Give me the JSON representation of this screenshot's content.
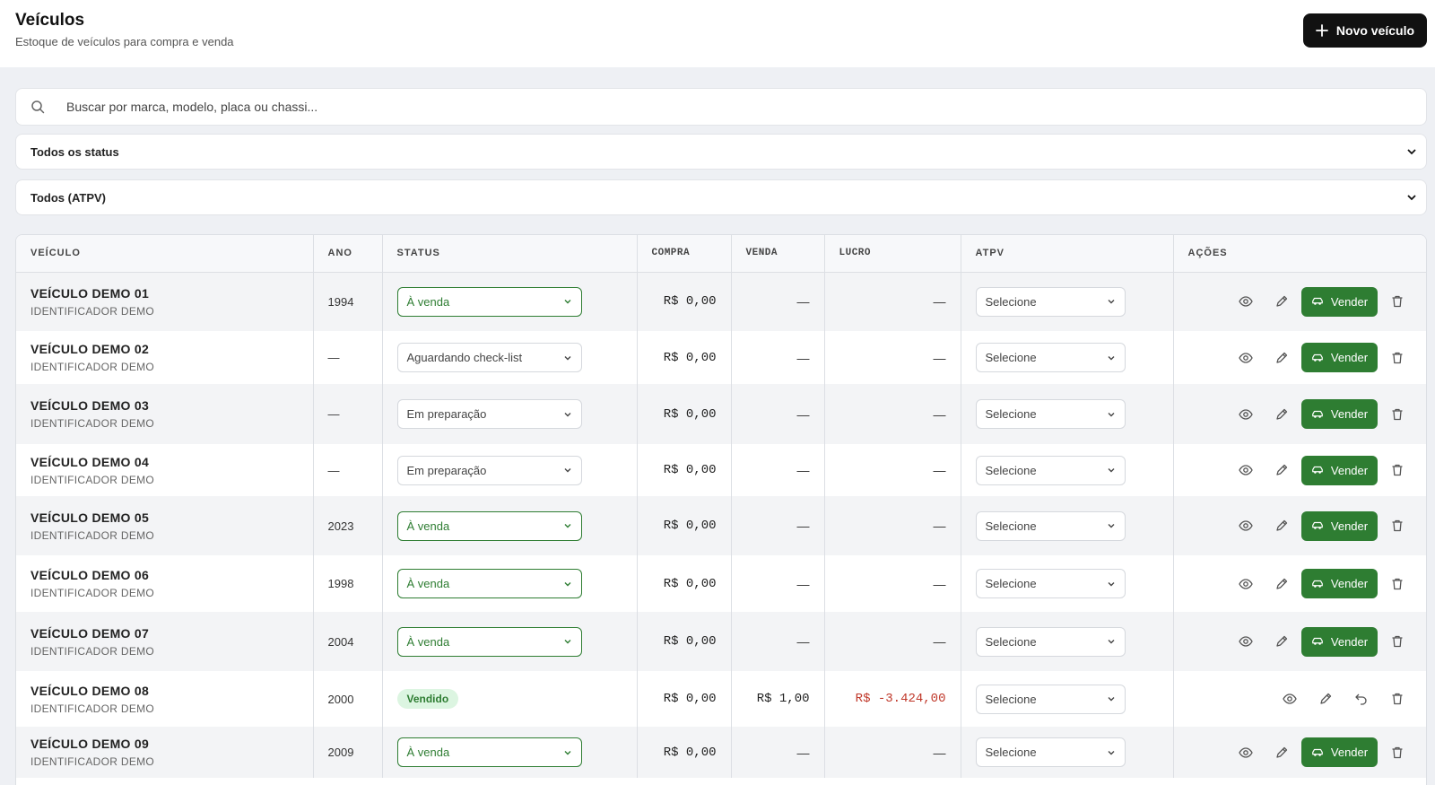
{
  "header": {
    "title": "Veículos",
    "subtitle": "Estoque de veículos para compra e venda",
    "new_button_label": "Novo veículo"
  },
  "search": {
    "placeholder": "Buscar por marca, modelo, placa ou chassi..."
  },
  "filters": {
    "status": "Todos os status",
    "atpv": "Todos (ATPV)"
  },
  "table": {
    "columns": [
      "VEÍCULO",
      "ANO",
      "STATUS",
      "COMPRA",
      "VENDA",
      "LUCRO",
      "ATPV",
      "AÇÕES"
    ],
    "sell_label": "Vender",
    "rows": [
      {
        "name": "VEÍCULO DEMO 01",
        "id": "IDENTIFICADOR DEMO",
        "year": "1994",
        "status": "À venda",
        "status_kind": "sale",
        "compra": "R$ 0,00",
        "venda": "—",
        "lucro": "—",
        "atpv": "Selecione",
        "sold": false
      },
      {
        "name": "VEÍCULO DEMO 02",
        "id": "IDENTIFICADOR DEMO",
        "year": "—",
        "status": "Aguardando check-list",
        "status_kind": "neutral",
        "compra": "R$ 0,00",
        "venda": "—",
        "lucro": "—",
        "atpv": "Selecione",
        "sold": false
      },
      {
        "name": "VEÍCULO DEMO 03",
        "id": "IDENTIFICADOR DEMO",
        "year": "—",
        "status": "Em preparação",
        "status_kind": "neutral",
        "compra": "R$ 0,00",
        "venda": "—",
        "lucro": "—",
        "atpv": "Selecione",
        "sold": false
      },
      {
        "name": "VEÍCULO DEMO 04",
        "id": "IDENTIFICADOR DEMO",
        "year": "—",
        "status": "Em preparação",
        "status_kind": "neutral",
        "compra": "R$ 0,00",
        "venda": "—",
        "lucro": "—",
        "atpv": "Selecione",
        "sold": false
      },
      {
        "name": "VEÍCULO DEMO 05",
        "id": "IDENTIFICADOR DEMO",
        "year": "2023",
        "status": "À venda",
        "status_kind": "sale",
        "compra": "R$ 0,00",
        "venda": "—",
        "lucro": "—",
        "atpv": "Selecione",
        "sold": false
      },
      {
        "name": "VEÍCULO DEMO 06",
        "id": "IDENTIFICADOR DEMO",
        "year": "1998",
        "status": "À venda",
        "status_kind": "sale",
        "compra": "R$ 0,00",
        "venda": "—",
        "lucro": "—",
        "atpv": "Selecione",
        "sold": false
      },
      {
        "name": "VEÍCULO DEMO 07",
        "id": "IDENTIFICADOR DEMO",
        "year": "2004",
        "status": "À venda",
        "status_kind": "sale",
        "compra": "R$ 0,00",
        "venda": "—",
        "lucro": "—",
        "atpv": "Selecione",
        "sold": false
      },
      {
        "name": "VEÍCULO DEMO 08",
        "id": "IDENTIFICADOR DEMO",
        "year": "2000",
        "status": "Vendido",
        "status_kind": "sold",
        "compra": "R$ 0,00",
        "venda": "R$ 1,00",
        "lucro": "R$ -3.424,00",
        "atpv": "Selecione",
        "sold": true
      },
      {
        "name": "VEÍCULO DEMO 09",
        "id": "IDENTIFICADOR DEMO",
        "year": "2009",
        "status": "À venda",
        "status_kind": "sale",
        "compra": "R$ 0,00",
        "venda": "—",
        "lucro": "—",
        "atpv": "Selecione",
        "sold": false
      }
    ]
  },
  "colors": {
    "accent_green": "#2e7d32",
    "loss_red": "#c0392b",
    "dark_button": "#111111"
  },
  "icons": [
    "plus-icon",
    "search-icon",
    "chevron-down-icon",
    "eye-icon",
    "pencil-icon",
    "car-icon",
    "trash-icon",
    "undo-icon"
  ]
}
